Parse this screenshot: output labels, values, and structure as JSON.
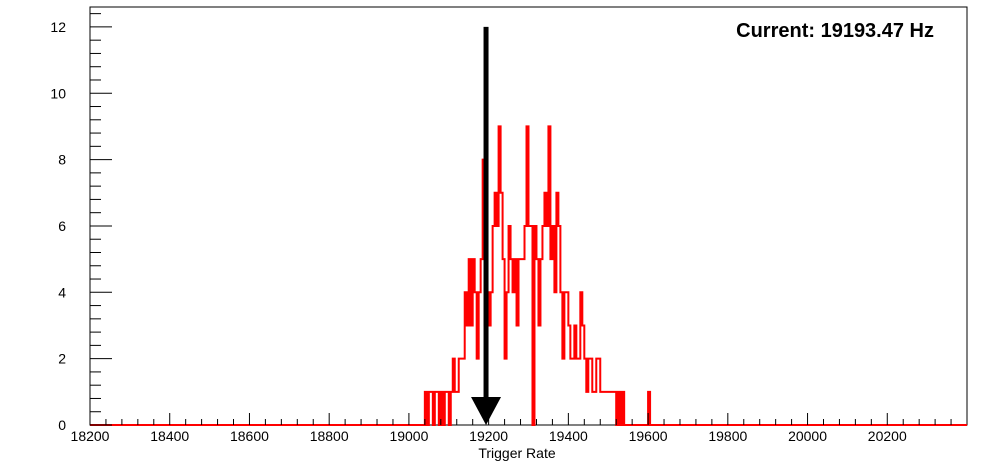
{
  "chart_data": {
    "type": "histogram",
    "title": "",
    "xlabel": "Trigger Rate",
    "ylabel": "",
    "xlim": [
      18200,
      20400
    ],
    "ylim": [
      0,
      12.6
    ],
    "grid": false,
    "legend": "none",
    "x_ticks": [
      18200,
      18400,
      18600,
      18800,
      19000,
      19200,
      19400,
      19600,
      19800,
      20000,
      20200
    ],
    "y_ticks": [
      0,
      2,
      4,
      6,
      8,
      10,
      12
    ],
    "series": [
      {
        "color": "#ff0000",
        "bin_width": 5,
        "bins": [
          [
            19040,
            1
          ],
          [
            19045,
            0
          ],
          [
            19050,
            1
          ],
          [
            19055,
            1
          ],
          [
            19060,
            0
          ],
          [
            19065,
            1
          ],
          [
            19070,
            1
          ],
          [
            19075,
            0
          ],
          [
            19080,
            1
          ],
          [
            19085,
            0
          ],
          [
            19090,
            1
          ],
          [
            19095,
            1
          ],
          [
            19100,
            0
          ],
          [
            19105,
            1
          ],
          [
            19110,
            2
          ],
          [
            19115,
            1
          ],
          [
            19120,
            1
          ],
          [
            19125,
            2
          ],
          [
            19130,
            2
          ],
          [
            19135,
            2
          ],
          [
            19140,
            4
          ],
          [
            19145,
            3
          ],
          [
            19150,
            5
          ],
          [
            19155,
            3
          ],
          [
            19160,
            5
          ],
          [
            19165,
            4
          ],
          [
            19170,
            2
          ],
          [
            19175,
            4
          ],
          [
            19180,
            5
          ],
          [
            19185,
            8
          ],
          [
            19190,
            3
          ],
          [
            19195,
            4
          ],
          [
            19200,
            3
          ],
          [
            19205,
            4
          ],
          [
            19210,
            6
          ],
          [
            19215,
            7
          ],
          [
            19220,
            6
          ],
          [
            19225,
            9
          ],
          [
            19230,
            7
          ],
          [
            19235,
            5
          ],
          [
            19240,
            2
          ],
          [
            19245,
            4
          ],
          [
            19250,
            6
          ],
          [
            19255,
            5
          ],
          [
            19260,
            4
          ],
          [
            19265,
            5
          ],
          [
            19270,
            3
          ],
          [
            19275,
            5
          ],
          [
            19280,
            5
          ],
          [
            19285,
            5
          ],
          [
            19290,
            6
          ],
          [
            19295,
            9
          ],
          [
            19300,
            6
          ],
          [
            19305,
            6
          ],
          [
            19310,
            0
          ],
          [
            19315,
            6
          ],
          [
            19320,
            5
          ],
          [
            19325,
            3
          ],
          [
            19330,
            5
          ],
          [
            19335,
            6
          ],
          [
            19340,
            7
          ],
          [
            19345,
            6
          ],
          [
            19350,
            9
          ],
          [
            19355,
            5
          ],
          [
            19360,
            6
          ],
          [
            19365,
            4
          ],
          [
            19370,
            7
          ],
          [
            19375,
            6
          ],
          [
            19380,
            4
          ],
          [
            19385,
            2
          ],
          [
            19390,
            4
          ],
          [
            19395,
            4
          ],
          [
            19400,
            3
          ],
          [
            19405,
            2
          ],
          [
            19410,
            2
          ],
          [
            19415,
            3
          ],
          [
            19420,
            2
          ],
          [
            19425,
            2
          ],
          [
            19430,
            4
          ],
          [
            19435,
            3
          ],
          [
            19440,
            2
          ],
          [
            19445,
            1
          ],
          [
            19450,
            2
          ],
          [
            19455,
            2
          ],
          [
            19460,
            1
          ],
          [
            19465,
            1
          ],
          [
            19470,
            2
          ],
          [
            19475,
            2
          ],
          [
            19480,
            1
          ],
          [
            19485,
            1
          ],
          [
            19490,
            1
          ],
          [
            19495,
            1
          ],
          [
            19500,
            1
          ],
          [
            19505,
            1
          ],
          [
            19510,
            1
          ],
          [
            19515,
            1
          ],
          [
            19520,
            0
          ],
          [
            19525,
            1
          ],
          [
            19530,
            0
          ],
          [
            19535,
            1
          ],
          [
            19540,
            0
          ],
          [
            19600,
            1
          ]
        ]
      }
    ],
    "annotations": [
      {
        "type": "arrow",
        "x": 19193.47,
        "y_from": 12,
        "y_to": 0,
        "color": "#000000"
      },
      {
        "type": "text",
        "text": "Current: 19193.47 Hz",
        "position": "top-right"
      }
    ]
  }
}
